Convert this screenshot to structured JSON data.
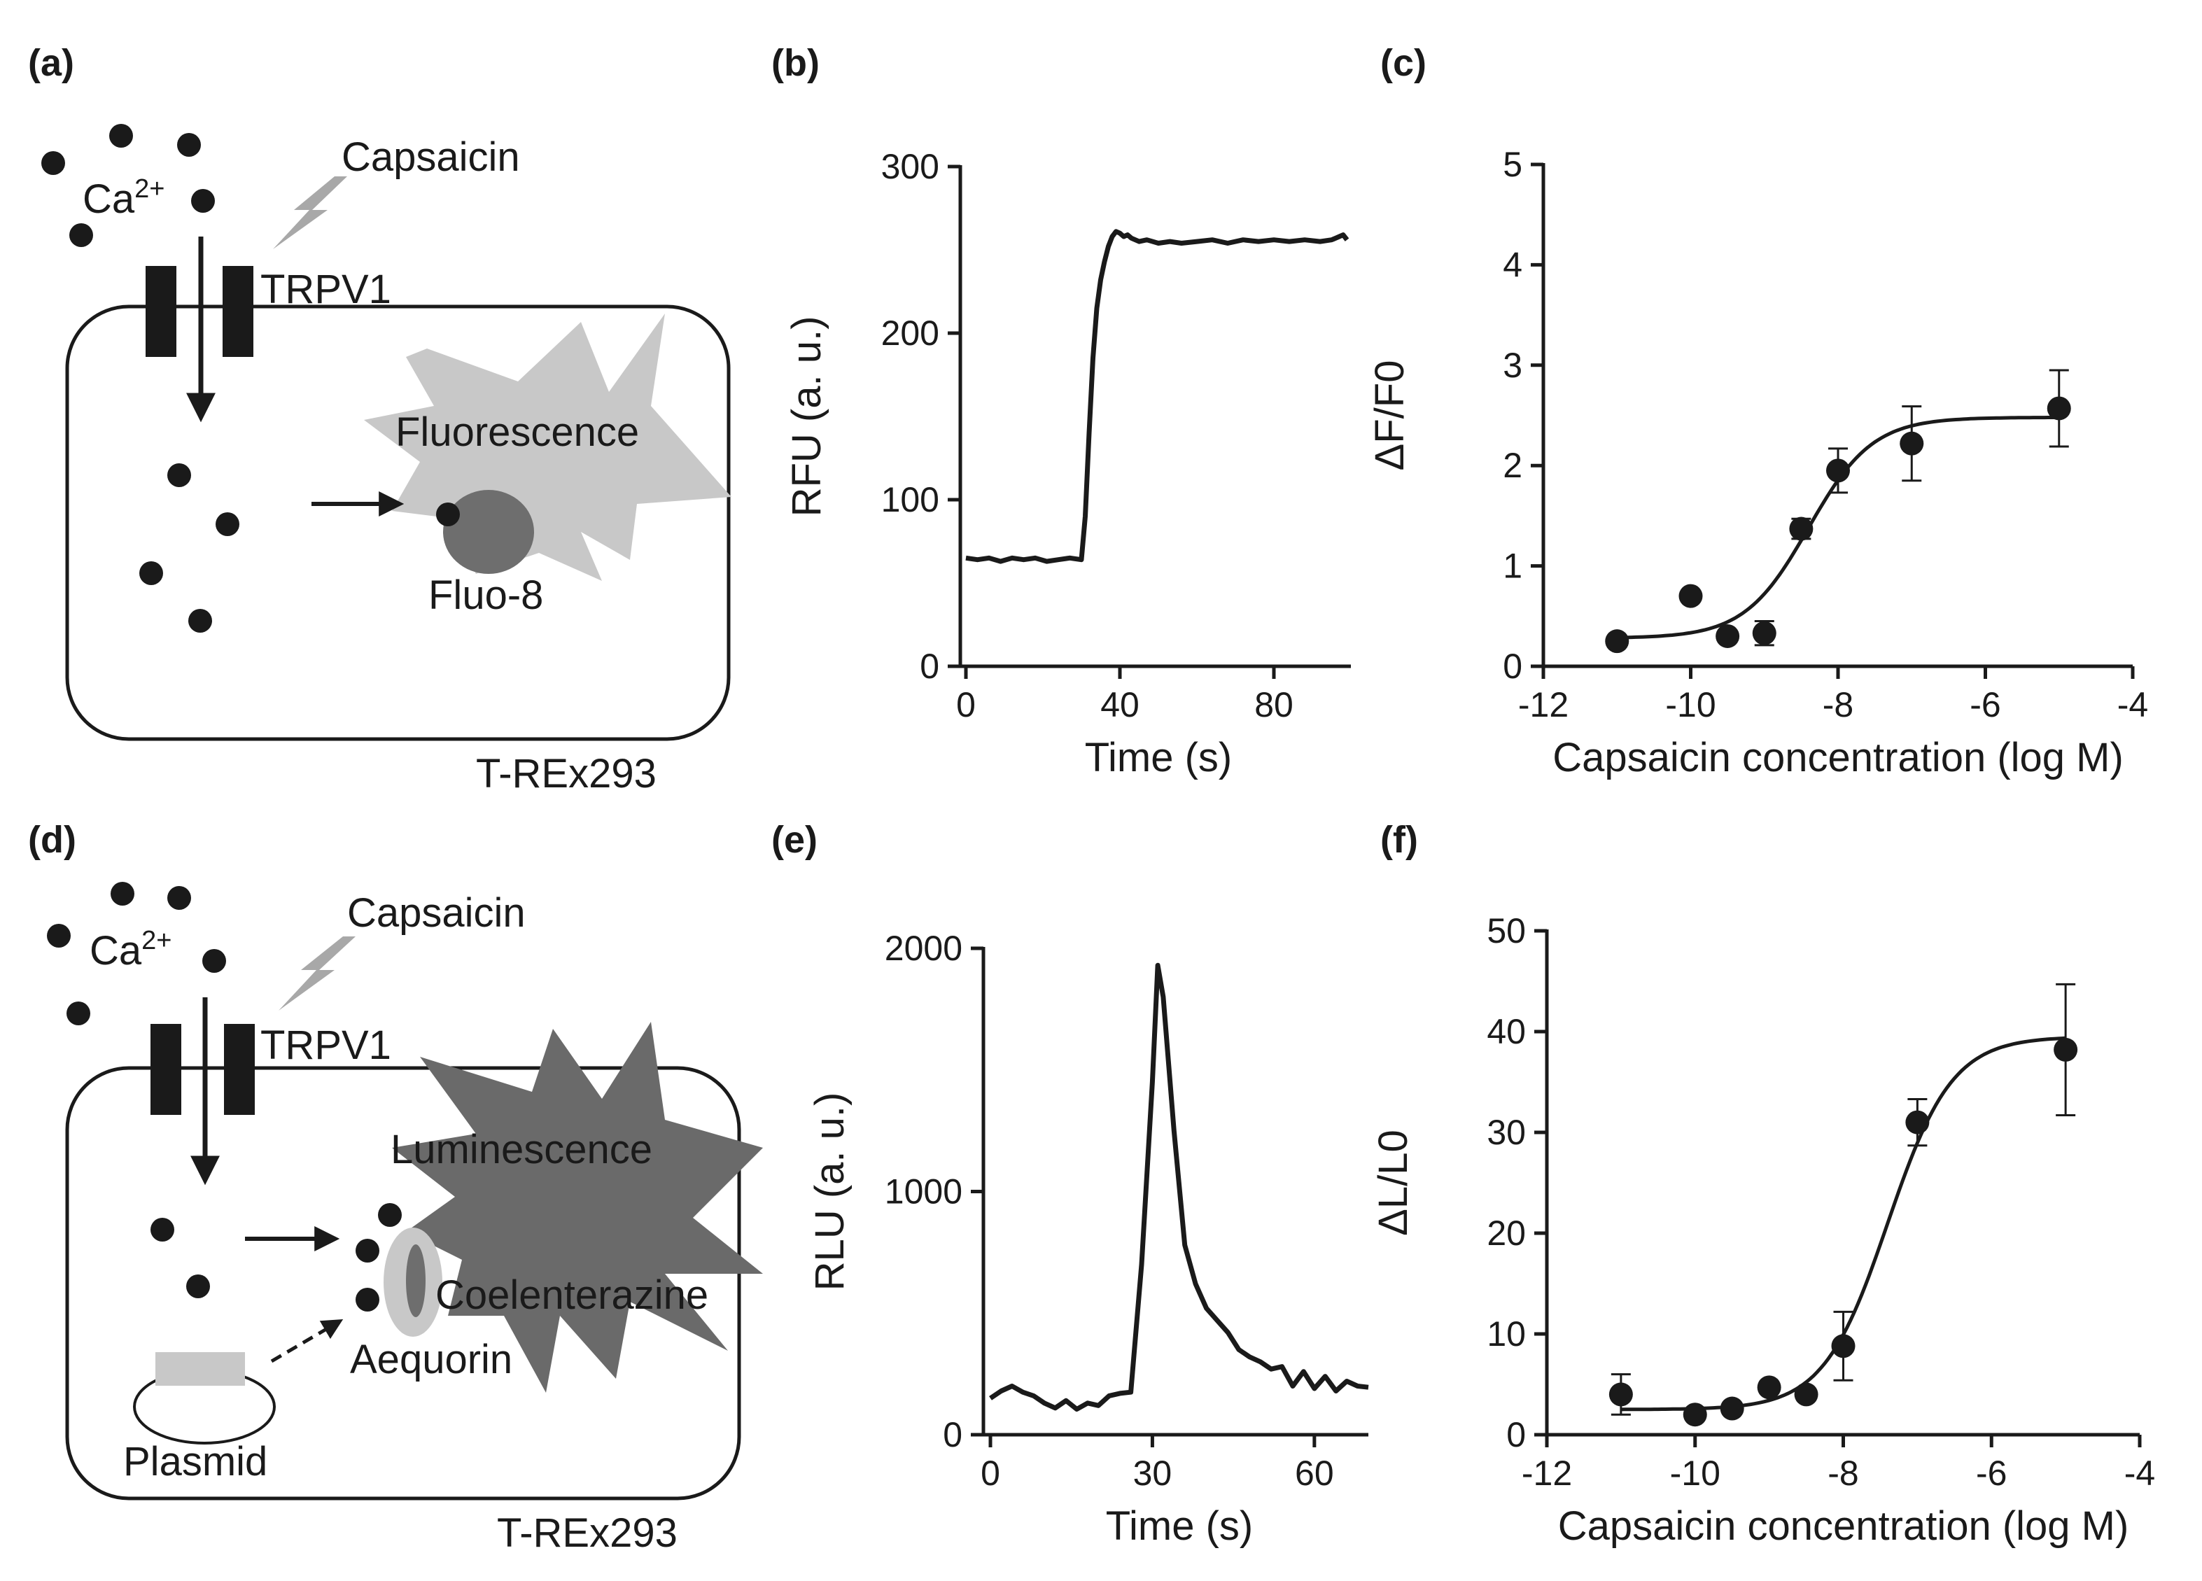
{
  "colors": {
    "ink": "#1a1a1a",
    "light_gray": "#c8c8c8",
    "mid_gray": "#a8a8a8",
    "dark_gray": "#6e6e6e",
    "burst_dark": "#6a6a6a"
  },
  "panels": {
    "a": {
      "label": "(a)",
      "ion_label": "Ca",
      "ion_charge": "2+",
      "stimulus": "Capsaicin",
      "channel": "TRPV1",
      "signal": "Fluorescence",
      "indicator": "Fluo-8",
      "cell_line": "T-REx293",
      "icons": [
        "calcium-ion-dot",
        "lightning-bolt-icon",
        "ion-channel",
        "fluorescence-burst",
        "arrow-right-icon"
      ]
    },
    "d": {
      "label": "(d)",
      "ion_label": "Ca",
      "ion_charge": "2+",
      "stimulus": "Capsaicin",
      "channel": "TRPV1",
      "signal": "Luminescence",
      "substrate": "Coelenterazine",
      "protein": "Aequorin",
      "vector": "Plasmid",
      "cell_line": "T-REx293",
      "icons": [
        "calcium-ion-dot",
        "lightning-bolt-icon",
        "ion-channel",
        "luminescence-burst",
        "dashed-arrow-icon",
        "plasmid-icon"
      ]
    },
    "b": {
      "label": "(b)"
    },
    "c": {
      "label": "(c)"
    },
    "e": {
      "label": "(e)"
    },
    "f": {
      "label": "(f)"
    }
  },
  "chart_data": [
    {
      "panel": "b",
      "type": "line",
      "title": "",
      "xlabel": "Time (s)",
      "ylabel": "RFU (a. u.)",
      "xlim": [
        0,
        100
      ],
      "ylim": [
        0,
        300
      ],
      "xticks": [
        0,
        40,
        80
      ],
      "yticks": [
        0,
        100,
        200,
        300
      ],
      "series": [
        {
          "x": [
            0,
            3,
            6,
            9,
            12,
            15,
            18,
            21,
            24,
            27,
            30,
            31,
            32,
            33,
            34,
            35,
            36,
            37,
            38,
            39,
            40,
            41,
            42,
            43,
            45,
            47,
            50,
            53,
            56,
            60,
            64,
            68,
            72,
            76,
            80,
            84,
            88,
            92,
            95,
            97,
            98,
            99
          ],
          "y": [
            65,
            64,
            65,
            63,
            65,
            64,
            65,
            63,
            64,
            65,
            64,
            90,
            140,
            185,
            215,
            232,
            243,
            252,
            258,
            261,
            260,
            258,
            259,
            257,
            255,
            256,
            254,
            255,
            254,
            255,
            256,
            254,
            256,
            255,
            256,
            255,
            256,
            255,
            256,
            258,
            259,
            256
          ]
        }
      ]
    },
    {
      "panel": "c",
      "type": "scatter",
      "title": "",
      "xlabel": "Capsaicin concentration (log M)",
      "ylabel": "ΔF/F0",
      "xlim": [
        -12,
        -4
      ],
      "ylim": [
        0,
        5
      ],
      "xticks": [
        -12,
        -10,
        -8,
        -6,
        -4
      ],
      "yticks": [
        0,
        1,
        2,
        3,
        4,
        5
      ],
      "points": {
        "x": [
          -11,
          -10,
          -9.5,
          -9,
          -8.5,
          -8,
          -7,
          -5
        ],
        "y": [
          0.25,
          0.7,
          0.3,
          0.33,
          1.37,
          1.95,
          2.22,
          2.57
        ],
        "err": [
          0,
          0,
          0,
          0.12,
          0.1,
          0.22,
          0.37,
          0.38
        ]
      },
      "fit": {
        "model": "sigmoid",
        "bottom": 0.28,
        "top": 2.48,
        "logEC50": -8.4,
        "hill": 1.0
      }
    },
    {
      "panel": "e",
      "type": "line",
      "title": "",
      "xlabel": "Time (s)",
      "ylabel": "RLU (a. u.)",
      "xlim": [
        0,
        70
      ],
      "ylim": [
        0,
        2000
      ],
      "xticks": [
        0,
        30,
        60
      ],
      "yticks": [
        0,
        1000,
        2000
      ],
      "series": [
        {
          "x": [
            0,
            2,
            4,
            6,
            8,
            10,
            12,
            14,
            16,
            18,
            20,
            22,
            24,
            26,
            28,
            30,
            31,
            32,
            34,
            36,
            38,
            40,
            42,
            44,
            46,
            48,
            50,
            52,
            54,
            56,
            58,
            60,
            62,
            64,
            66,
            68,
            70
          ],
          "y": [
            150,
            180,
            200,
            175,
            160,
            130,
            110,
            140,
            105,
            130,
            120,
            160,
            170,
            175,
            700,
            1450,
            1930,
            1800,
            1250,
            780,
            620,
            520,
            470,
            420,
            350,
            320,
            300,
            270,
            280,
            200,
            260,
            190,
            240,
            180,
            220,
            200,
            195
          ]
        }
      ]
    },
    {
      "panel": "f",
      "type": "scatter",
      "title": "",
      "xlabel": "Capsaicin concentration (log M)",
      "ylabel": "ΔL/L0",
      "xlim": [
        -12,
        -4
      ],
      "ylim": [
        0,
        50
      ],
      "xticks": [
        -12,
        -10,
        -8,
        -6,
        -4
      ],
      "yticks": [
        0,
        10,
        20,
        30,
        40,
        50
      ],
      "points": {
        "x": [
          -11,
          -10,
          -9.5,
          -9,
          -8.5,
          -8,
          -7,
          -5
        ],
        "y": [
          4.0,
          2.0,
          2.6,
          4.7,
          4.0,
          8.8,
          31.0,
          38.2
        ],
        "err": [
          2.0,
          0,
          0,
          0,
          0,
          3.4,
          2.3,
          6.5
        ]
      },
      "fit": {
        "model": "sigmoid",
        "bottom": 2.5,
        "top": 39.5,
        "logEC50": -7.4,
        "hill": 1.0
      }
    }
  ]
}
